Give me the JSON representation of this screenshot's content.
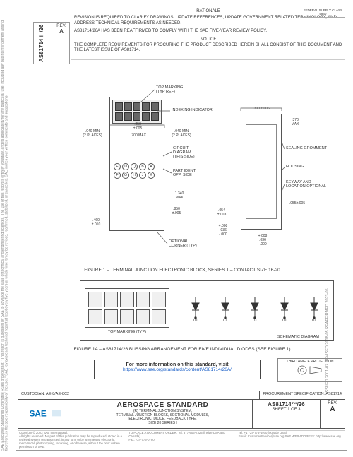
{
  "doc_number": "AS81714™/26",
  "rev_label": "REV.",
  "rev": "A",
  "federal_supply": {
    "label": "FEDERAL SUPPLY CLASS",
    "code": "5940"
  },
  "rationale": {
    "heading": "RATIONALE",
    "p1": "REVISION IS REQUIRED TO CLARIFY DRAWINGS, UPDATE REFERENCES, UPDATE GOVERNMENT RELATED TERMINOLOGY, AND ADDRESS TECHNICAL REQUIREMENTS AS NEEDED.",
    "p2": "AS81714/26A HAS BEEN REAFFIRMED TO COMPLY WITH THE SAE FIVE-YEAR REVIEW POLICY.",
    "notice": "NOTICE",
    "p3": "THE COMPLETE REQUIREMENTS FOR PROCURING THE PRODUCT DESCRIBED HEREIN SHALL CONSIST OF THIS DOCUMENT AND THE LATEST ISSUE OF AS81714."
  },
  "callouts": {
    "top_marking": "TOP MARKING\n(TYP REF)",
    "indexing": "INDEXING INDICATOR",
    "circuit": "CIRCUIT\nDIAGRAM\n(THIS SIDE)",
    "part_ident": "PART IDENT.\nOPP. SIDE",
    "optional_corner": "OPTIONAL\nCORNER (TYP)",
    "sealing": "SEALING GROMMENT",
    "housing": "HOUSING",
    "keyway": "KEYWAY AND\nLOCATION OPTIONAL"
  },
  "dims": {
    "d1": ".040 MIN\n(2 PLACES)",
    "d2": ".850\n±.005",
    "d3": ".700 MAX",
    "d4": ".040 MIN\n(2 PLACES)",
    "d5": ".390 ±.005",
    "d6": ".370\nMAX",
    "d7": "1.340\nMAX",
    "d8": ".850\n±.005",
    "d9": ".460\n±.010",
    "d10": ".054\n±.003",
    "d11": "+.008\n.036\n-.000",
    "d12": "+.008\n.036\n-.000",
    "d13": ".055±.005"
  },
  "socket_letters": [
    "E",
    "D",
    "Q",
    "B",
    "A",
    "F",
    "G",
    "H",
    "J",
    "K"
  ],
  "fig1": "FIGURE 1 – TERMINAL JUNCTION ELECTRONIC BLOCK, SERIES 1 – CONTACT SIZE 16-20",
  "fig1a_sub_left": "TOP MARKING (TYP)",
  "fig1a_sub_right": "SCHEMATIC DIAGRAM",
  "diode_label": "D1",
  "fig1a": "FIGURE 1A – AS81714/26 BUSSING ARRANGEMENT FOR FIVE INDIVIDUAL DIODES (SEE FIGURE 1)",
  "link": {
    "text": "For more information on this standard, visit",
    "url": "https://www.sae.org/standards/content/AS81714/26A/"
  },
  "third_angle": "THIRD ANGLE PROJECTION",
  "titleblock": {
    "custodian": "CUSTODIAN: AE-8/AE-8C2",
    "procurement": "PROCUREMENT SPECIFICATION: AS81714",
    "std": "AEROSPACE STANDARD",
    "subtitle": "(R) TERMINAL JUNCTION SYSTEM,\nTERMINAL JUNCTION  BLOCKS, SECTIONAL MODULES,\nELECTRONIC, DIODE, FEEDBACK TYPE,\nSIZE 20 SERIES I",
    "sheet": "SHEET 1 OF 3"
  },
  "side_text": "SAE Executive Standards Committee Rules provide that: \"This report is published by SAE to advance the state of technical and engineering sciences. The use of this report is entirely voluntary, and its applicability for any particular use, including any patent infringement arising therefrom, is the sole responsibility of the user.\"  SAE reviews each technical report at least every five years at which time it may be revised, reaffirmed, stabilized, or cancelled. SAE invites your written comments and suggestions.",
  "right_text": "ISSUED 2001-07    REVISED 2018-05    REAFFIRMED 2023-05",
  "footer": {
    "copyright": "Copyright © 2023 SAE International.\nAll rights reserved. No part of this publication may be reproduced, stored in a retrieval system or transmitted, in any form or by any means, electronic, mechanical, photocopying, recording, or otherwise, without the prior written permission of SAE.",
    "order": "TO PLACE A DOCUMENT ORDER:   Tel: 877-606-7323 (inside USA and Canada)\n                                                   Fax: 724-776-0790",
    "contact": "Tel: +1 724-776-4970 (outside USA)\nEmail: CustomerService@sae.org      SAE WEB ADDRESS: http://www.sae.org"
  },
  "colors": {
    "border": "#999999",
    "line": "#555555",
    "text": "#333333",
    "muted": "#888888",
    "link": "#1a5fc7",
    "sae_blue": "#0072bc"
  }
}
